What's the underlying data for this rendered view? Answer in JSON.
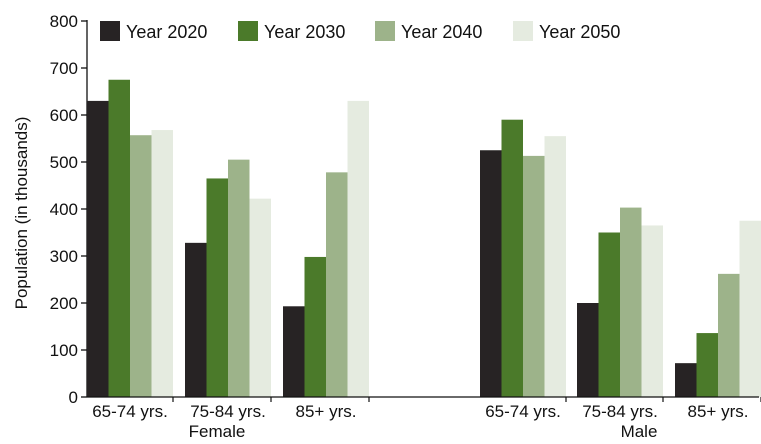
{
  "chart_data": {
    "type": "bar",
    "title": "",
    "ylabel": "Population (in thousands)",
    "xlabel": "",
    "ylim": [
      0,
      800
    ],
    "yticks": [
      0,
      100,
      200,
      300,
      400,
      500,
      600,
      700,
      800
    ],
    "grid": false,
    "legend_position": "top",
    "groups": [
      {
        "name": "Female",
        "categories": [
          "65-74 yrs.",
          "75-84 yrs.",
          "85+ yrs."
        ]
      },
      {
        "name": "Male",
        "categories": [
          "65-74 yrs.",
          "75-84 yrs.",
          "85+ yrs."
        ]
      }
    ],
    "series": [
      {
        "name": "Year 2020",
        "color": "#272324",
        "values": [
          630,
          328,
          193,
          525,
          200,
          72
        ]
      },
      {
        "name": "Year 2030",
        "color": "#4b7a2a",
        "values": [
          675,
          465,
          298,
          590,
          350,
          136
        ]
      },
      {
        "name": "Year 2040",
        "color": "#9db38a",
        "values": [
          557,
          505,
          478,
          513,
          403,
          262
        ]
      },
      {
        "name": "Year 2050",
        "color": "#e5ebe0",
        "values": [
          568,
          422,
          630,
          555,
          365,
          375
        ]
      }
    ]
  }
}
